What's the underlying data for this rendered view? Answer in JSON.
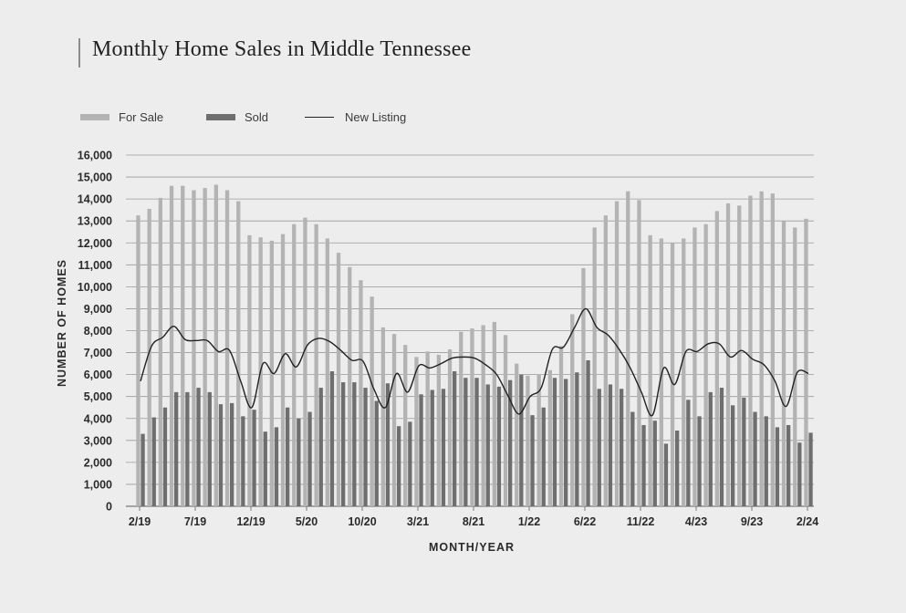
{
  "title": "Monthly Home Sales in Middle Tennessee",
  "legend": {
    "for_sale": "For Sale",
    "sold": "Sold",
    "new_listing": "New Listing"
  },
  "colors": {
    "for_sale": "#b3b3b3",
    "sold": "#6e6e6e",
    "new_listing": "#222222",
    "grid": "#9a9a9a",
    "background": "#ededed"
  },
  "chart_data": {
    "type": "bar",
    "ylabel": "NUMBER OF HOMES",
    "xlabel": "MONTH/YEAR",
    "ylim": [
      0,
      16000
    ],
    "yticks": [
      "0",
      "1,000",
      "2,000",
      "3,000",
      "4,000",
      "5,000",
      "6,000",
      "7,000",
      "8,000",
      "9,000",
      "10,000",
      "11,000",
      "12,000",
      "13,000",
      "14,000",
      "15,000",
      "16,000"
    ],
    "grid": "horizontal",
    "legend_position": "top-left",
    "categories": [
      "2/19",
      "3/19",
      "4/19",
      "5/19",
      "6/19",
      "7/19",
      "8/19",
      "9/19",
      "10/19",
      "11/19",
      "12/19",
      "1/20",
      "2/20",
      "3/20",
      "4/20",
      "5/20",
      "6/20",
      "7/20",
      "8/20",
      "9/20",
      "10/20",
      "11/20",
      "12/20",
      "1/21",
      "2/21",
      "3/21",
      "4/21",
      "5/21",
      "6/21",
      "7/21",
      "8/21",
      "9/21",
      "10/21",
      "11/21",
      "12/21",
      "1/22",
      "2/22",
      "3/22",
      "4/22",
      "5/22",
      "6/22",
      "7/22",
      "8/22",
      "9/22",
      "10/22",
      "11/22",
      "12/22",
      "1/23",
      "2/23",
      "3/23",
      "4/23",
      "5/23",
      "6/23",
      "7/23",
      "8/23",
      "9/23",
      "10/23",
      "11/23",
      "12/23",
      "1/24",
      "2/24"
    ],
    "x_tick_labels": [
      {
        "index": 0,
        "label": "2/19"
      },
      {
        "index": 5,
        "label": "7/19"
      },
      {
        "index": 10,
        "label": "12/19"
      },
      {
        "index": 15,
        "label": "5/20"
      },
      {
        "index": 20,
        "label": "10/20"
      },
      {
        "index": 25,
        "label": "3/21"
      },
      {
        "index": 30,
        "label": "8/21"
      },
      {
        "index": 35,
        "label": "1/22"
      },
      {
        "index": 40,
        "label": "6/22"
      },
      {
        "index": 45,
        "label": "11/22"
      },
      {
        "index": 50,
        "label": "4/23"
      },
      {
        "index": 55,
        "label": "9/23"
      },
      {
        "index": 60,
        "label": "2/24"
      }
    ],
    "series": [
      {
        "name": "For Sale",
        "type": "bar",
        "values": [
          13250,
          13550,
          14050,
          14600,
          14600,
          14400,
          14500,
          14650,
          14400,
          13900,
          12350,
          12250,
          12100,
          12400,
          12850,
          13150,
          12850,
          12200,
          11550,
          10900,
          10300,
          9550,
          8150,
          7850,
          7350,
          6800,
          7050,
          6900,
          7150,
          7950,
          8100,
          8250,
          8400,
          7800,
          6500,
          5950,
          6000,
          6200,
          7300,
          8750,
          10850,
          12700,
          13250,
          13900,
          14350,
          13950,
          12350,
          12200,
          12000,
          12200,
          12700,
          12850,
          13450,
          13800,
          13700,
          14150,
          14350,
          14250,
          13000,
          12700,
          13100
        ]
      },
      {
        "name": "Sold",
        "type": "bar",
        "values": [
          3300,
          4050,
          4500,
          5200,
          5200,
          5400,
          5200,
          4650,
          4700,
          4100,
          4400,
          3400,
          3600,
          4500,
          4000,
          4300,
          5400,
          6150,
          5650,
          5650,
          5400,
          4800,
          5600,
          3650,
          3850,
          5100,
          5300,
          5350,
          6150,
          5850,
          5850,
          5550,
          5450,
          5750,
          6000,
          4150,
          4500,
          5850,
          5800,
          6100,
          6650,
          5350,
          5550,
          5350,
          4300,
          3700,
          3900,
          2850,
          3450,
          4850,
          4100,
          5200,
          5400,
          4600,
          4950,
          4300,
          4100,
          3600,
          3700,
          2900,
          3350
        ]
      },
      {
        "name": "New Listing",
        "type": "line",
        "values": [
          5700,
          7300,
          7700,
          8200,
          7600,
          7550,
          7550,
          7050,
          7100,
          5700,
          4500,
          6500,
          6050,
          6950,
          6350,
          7350,
          7650,
          7500,
          7100,
          6650,
          6600,
          5300,
          4500,
          6050,
          5200,
          6400,
          6300,
          6500,
          6750,
          6800,
          6750,
          6450,
          6000,
          5050,
          4200,
          5000,
          5400,
          7150,
          7250,
          8150,
          9000,
          8150,
          7800,
          7150,
          6300,
          5200,
          4150,
          6300,
          5550,
          7050,
          7050,
          7400,
          7400,
          6800,
          7100,
          6700,
          6450,
          5700,
          4550,
          6100,
          6050
        ]
      }
    ]
  }
}
